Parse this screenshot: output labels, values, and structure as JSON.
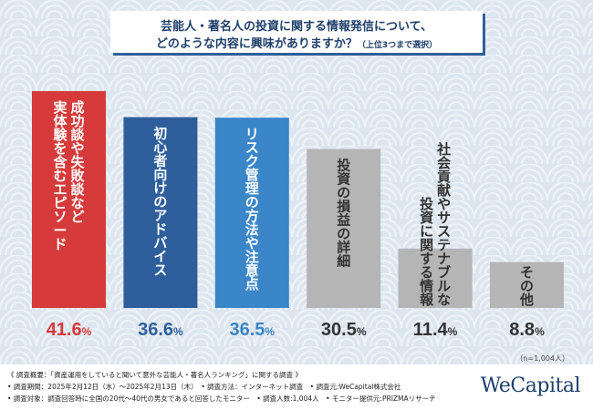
{
  "title": {
    "line1": "芸能人・著名人の投資に関する情報発信について、",
    "line2": "どのような内容に興味がありますか？",
    "note": "（上位3つまで選択）"
  },
  "chart_data": {
    "type": "bar",
    "categories": [
      "成功談や失敗談など実体験を含むエピソード",
      "初心者向けのアドバイス",
      "リスク管理の方法や注意点",
      "投資の損益の詳細",
      "社会貢献やサステナブルな投資に関する情報",
      "その他"
    ],
    "label_columns": [
      [
        "成功談や失敗談など",
        "実体験を含むエピソード"
      ],
      [
        "初心者向けのアドバイス"
      ],
      [
        "リスク管理の方法や注意点"
      ],
      [
        "投資の損益の詳細"
      ],
      [
        "社会貢献やサステナブルな",
        "投資に関する情報"
      ],
      [
        "その他"
      ]
    ],
    "value_labels": [
      {
        "num": "41.6",
        "unit": "%"
      },
      {
        "num": "36.6",
        "unit": "%"
      },
      {
        "num": "36.5",
        "unit": "%"
      },
      {
        "num": "30.5",
        "unit": "%"
      },
      {
        "num": "11.4",
        "unit": "%"
      },
      {
        "num": "8.8",
        "unit": "%"
      }
    ],
    "values": [
      41.6,
      36.6,
      36.5,
      30.5,
      11.4,
      8.8
    ],
    "ylim": [
      0,
      41.6
    ],
    "colors": [
      "#d63a3a",
      "#2e5f9c",
      "#3a86c8",
      "#b5b5b5",
      "#b5b5b5",
      "#b5b5b5"
    ],
    "label_colors": [
      "#ffffff",
      "#ffffff",
      "#ffffff",
      "#333333",
      "#333333",
      "#333333"
    ],
    "value_colors": [
      "#d63a3a",
      "#2e5f9c",
      "#3a86c8",
      "#333333",
      "#333333",
      "#333333"
    ],
    "sample": "（n=1,004人）"
  },
  "footer": {
    "line1": "《 調査概要：「資産運用をしていると聞いて意外な芸能人・著名人ランキング」に関する調査 》",
    "line2": "• 調査期間：2025年2月12日（水）〜2025年2月13日（木）　• 調査方法：インターネット調査　• 調査元:WeCapital株式会社",
    "line3": "• 調査対象：調査回答時に全国の20代〜40代の男女であると回答したモニター　• 調査人数:1,004人　• モニター提供元:PRIZMAリサーチ",
    "logo": "WeCapital"
  }
}
